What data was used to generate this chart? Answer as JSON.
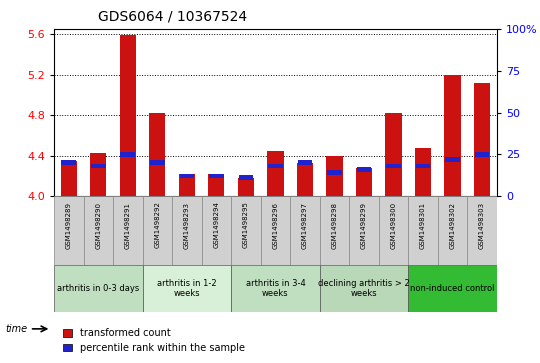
{
  "title": "GDS6064 / 10367524",
  "samples": [
    "GSM1498289",
    "GSM1498290",
    "GSM1498291",
    "GSM1498292",
    "GSM1498293",
    "GSM1498294",
    "GSM1498295",
    "GSM1498296",
    "GSM1498297",
    "GSM1498298",
    "GSM1498299",
    "GSM1498300",
    "GSM1498301",
    "GSM1498302",
    "GSM1498303"
  ],
  "red_values": [
    4.35,
    4.43,
    5.59,
    4.82,
    4.22,
    4.22,
    4.18,
    4.44,
    4.33,
    4.4,
    4.28,
    4.82,
    4.47,
    5.2,
    5.12
  ],
  "blue_values": [
    20,
    18,
    25,
    20,
    12,
    12,
    11,
    18,
    20,
    14,
    16,
    18,
    18,
    22,
    25
  ],
  "ylim_left": [
    4.0,
    5.65
  ],
  "ylim_right": [
    0,
    100
  ],
  "yticks_left": [
    4.0,
    4.4,
    4.8,
    5.2,
    5.6
  ],
  "yticks_right": [
    0,
    25,
    50,
    75,
    100
  ],
  "red_color": "#cc1111",
  "blue_color": "#2222cc",
  "plot_bg": "#ffffff",
  "gray_box_color": "#d0d0d0",
  "groups": [
    {
      "label": "arthritis in 0-3 days",
      "start": 0,
      "end": 3,
      "color": "#c0dfc0"
    },
    {
      "label": "arthritis in 1-2\nweeks",
      "start": 3,
      "end": 6,
      "color": "#d8f0d8"
    },
    {
      "label": "arthritis in 3-4\nweeks",
      "start": 6,
      "end": 9,
      "color": "#c0dfc0"
    },
    {
      "label": "declining arthritis > 2\nweeks",
      "start": 9,
      "end": 12,
      "color": "#b8d8b8"
    },
    {
      "label": "non-induced control",
      "start": 12,
      "end": 15,
      "color": "#33bb33"
    }
  ],
  "legend_red": "transformed count",
  "legend_blue": "percentile rank within the sample",
  "bar_width": 0.55
}
